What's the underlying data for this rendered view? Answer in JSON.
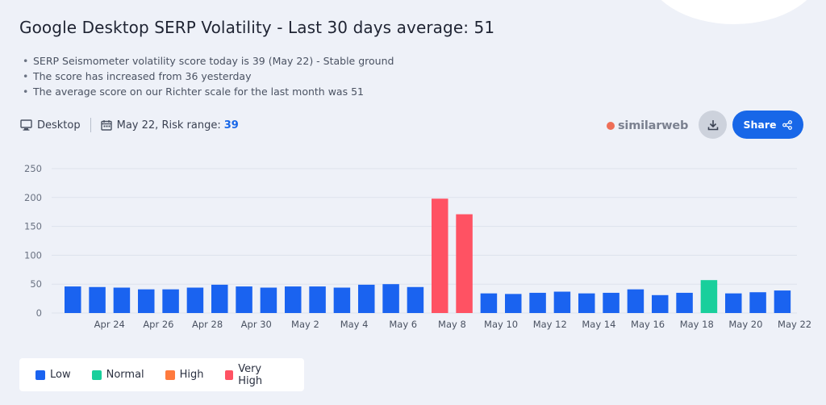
{
  "title": "Google Desktop SERP Volatility - Last 30 days average: 51",
  "bullets": [
    "SERP Seismometer volatility score today is 39 (May 22) - Stable ground",
    "The score has increased from 36 yesterday",
    "The average score on our Richter scale for the last month was 51"
  ],
  "meta": {
    "device_label": "Desktop",
    "date_label": "May 22, Risk range:",
    "risk_value": "39"
  },
  "brand": "similarweb",
  "share_label": "Share",
  "colors": {
    "Low": "#1a63f0",
    "Normal": "#19cf9c",
    "High": "#ff7a3d",
    "Very High": "#ff5263"
  },
  "legend": [
    {
      "label": "Low",
      "key": "Low"
    },
    {
      "label": "Normal",
      "key": "Normal"
    },
    {
      "label": "High",
      "key": "High"
    },
    {
      "label": "Very High",
      "key": "Very High"
    }
  ],
  "chart_data": {
    "type": "bar",
    "title": "Google Desktop SERP Volatility - Last 30 days average: 51",
    "ylim": [
      0,
      250
    ],
    "yticks": [
      0,
      50,
      100,
      150,
      200,
      250
    ],
    "grid": true,
    "legend_position": "bottom-left",
    "categories": [
      "Apr 23",
      "Apr 24",
      "Apr 25",
      "Apr 26",
      "Apr 27",
      "Apr 28",
      "Apr 29",
      "Apr 30",
      "May 1",
      "May 2",
      "May 3",
      "May 4",
      "May 5",
      "May 6",
      "May 7",
      "May 8",
      "May 9",
      "May 10",
      "May 11",
      "May 12",
      "May 13",
      "May 14",
      "May 15",
      "May 16",
      "May 17",
      "May 18",
      "May 19",
      "May 20",
      "May 21",
      "May 22"
    ],
    "tick_labels": [
      "Apr 24",
      "Apr 26",
      "Apr 28",
      "Apr 30",
      "May 2",
      "May 4",
      "May 6",
      "May 8",
      "May 10",
      "May 12",
      "May 14",
      "May 16",
      "May 18",
      "May 20",
      "May 22"
    ],
    "values": [
      46,
      45,
      44,
      41,
      41,
      44,
      49,
      46,
      44,
      46,
      46,
      44,
      49,
      50,
      45,
      198,
      171,
      34,
      33,
      35,
      37,
      34,
      35,
      41,
      31,
      35,
      57,
      34,
      36,
      39
    ],
    "levels": [
      "Low",
      "Low",
      "Low",
      "Low",
      "Low",
      "Low",
      "Low",
      "Low",
      "Low",
      "Low",
      "Low",
      "Low",
      "Low",
      "Low",
      "Low",
      "Very High",
      "Very High",
      "Low",
      "Low",
      "Low",
      "Low",
      "Low",
      "Low",
      "Low",
      "Low",
      "Low",
      "Normal",
      "Low",
      "Low",
      "Low"
    ]
  }
}
